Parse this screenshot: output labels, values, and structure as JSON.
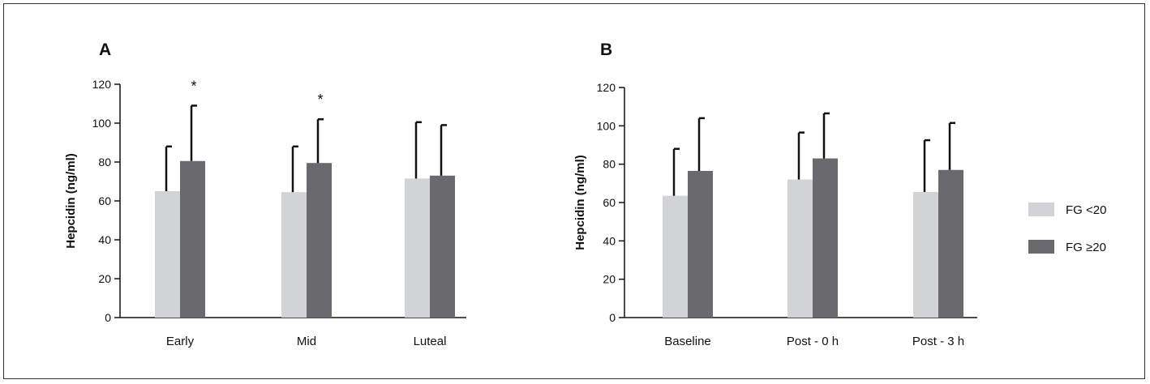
{
  "colors": {
    "fg_low": "#d2d3d5",
    "fg_high": "#6a6a6e",
    "axis": "#111111",
    "error_bar": "#111111"
  },
  "legend": {
    "items": [
      {
        "label": "FG <20",
        "color": "#d2d3d5"
      },
      {
        "label": "FG ≥20",
        "color": "#6a6a6e"
      }
    ]
  },
  "chart_data": [
    {
      "type": "bar",
      "panel": "A",
      "categories": [
        "Early",
        "Mid",
        "Luteal"
      ],
      "ylabel": "Hepcidin (ng/ml)",
      "ylim": [
        0,
        120
      ],
      "yticks": [
        0,
        20,
        40,
        60,
        80,
        100,
        120
      ],
      "series": [
        {
          "name": "FG <20",
          "values": [
            65,
            64.5,
            71.5
          ],
          "errors": [
            23,
            23.5,
            29
          ]
        },
        {
          "name": "FG ≥20",
          "values": [
            80.5,
            79.5,
            73
          ],
          "errors": [
            28.5,
            22.5,
            26
          ]
        }
      ],
      "annotations": [
        {
          "category": "Early",
          "text": "*"
        },
        {
          "category": "Mid",
          "text": "*"
        }
      ]
    },
    {
      "type": "bar",
      "panel": "B",
      "categories": [
        "Baseline",
        "Post - 0 h",
        "Post - 3 h"
      ],
      "ylabel": "Hepcidin (ng/ml)",
      "ylim": [
        0,
        120
      ],
      "yticks": [
        0,
        20,
        40,
        60,
        80,
        100,
        120
      ],
      "series": [
        {
          "name": "FG <20",
          "values": [
            63.5,
            72,
            65.5
          ],
          "errors": [
            24.5,
            24.5,
            27
          ]
        },
        {
          "name": "FG ≥20",
          "values": [
            76.5,
            83,
            77
          ],
          "errors": [
            27.5,
            23.5,
            24.5
          ]
        }
      ],
      "annotations": []
    }
  ]
}
